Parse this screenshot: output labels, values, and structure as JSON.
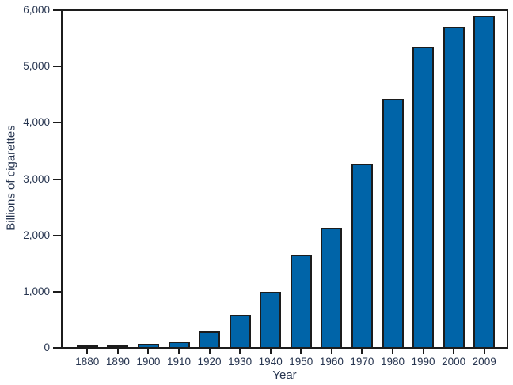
{
  "chart_data": {
    "type": "bar",
    "title": "",
    "xlabel": "Year",
    "ylabel": "Billions of cigarettes",
    "categories": [
      "1880",
      "1890",
      "1900",
      "1910",
      "1920",
      "1930",
      "1940",
      "1950",
      "1960",
      "1970",
      "1980",
      "1990",
      "2000",
      "2009"
    ],
    "values": [
      10,
      20,
      50,
      100,
      280,
      580,
      990,
      1650,
      2130,
      3280,
      4440,
      5360,
      5715,
      5910
    ],
    "ylim": [
      0,
      6000
    ],
    "ytick_interval": 1000,
    "ytick_labels": [
      "0",
      "1,000",
      "2,000",
      "3,000",
      "4,000",
      "5,000",
      "6,000"
    ],
    "grid": false,
    "frame_box": true,
    "legend_position": "none",
    "colors": {
      "bar_fill": "#0064a8",
      "bar_border": "#1c1c1c",
      "axis": "#1c1c1c",
      "text": "#26344f",
      "background": "#ffffff"
    }
  }
}
